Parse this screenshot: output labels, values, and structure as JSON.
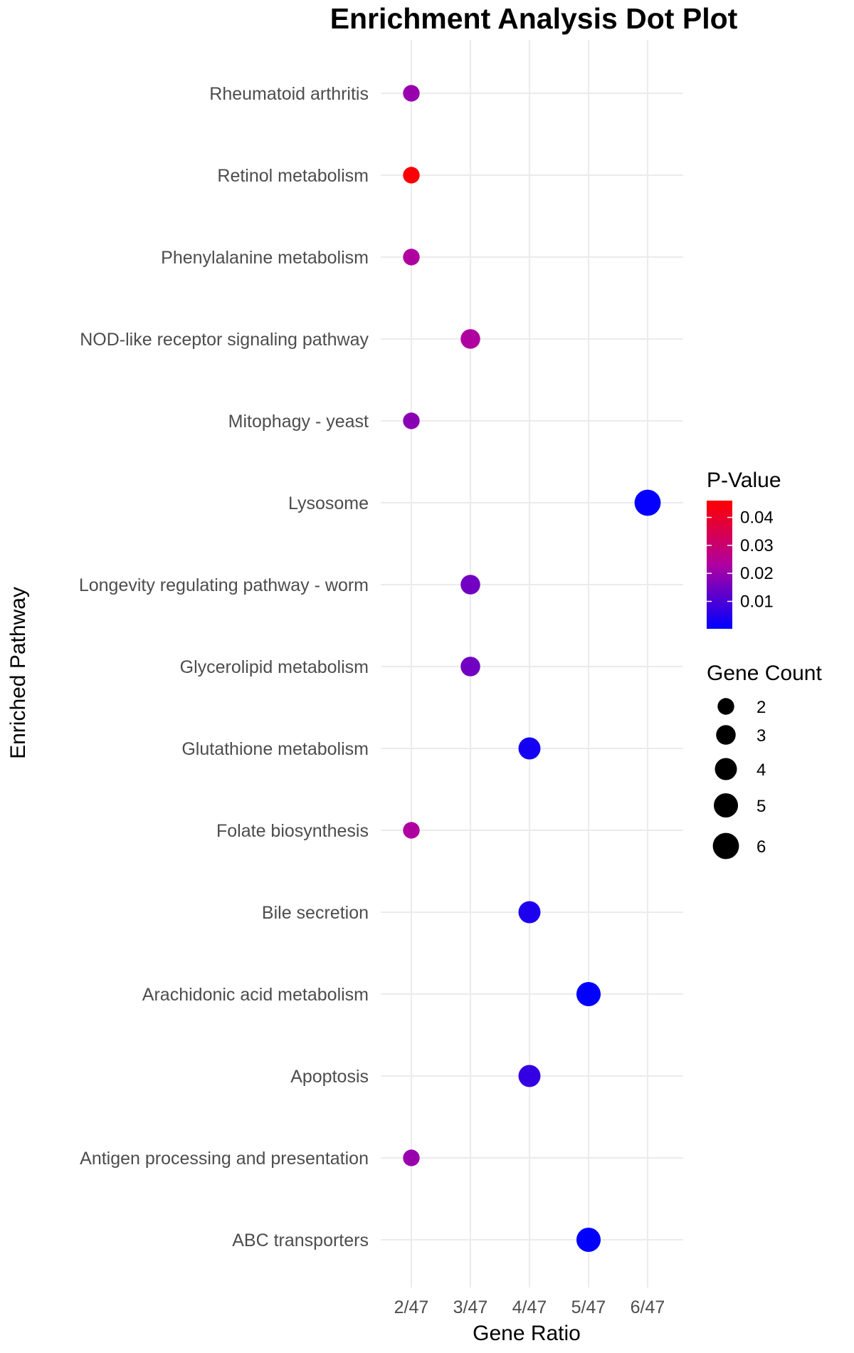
{
  "chart_data": {
    "type": "scatter",
    "title": "Enrichment Analysis Dot Plot",
    "xlabel": "Gene Ratio",
    "ylabel": "Enriched Pathway",
    "x_categories": [
      "2/47",
      "3/47",
      "4/47",
      "5/47",
      "6/47"
    ],
    "grid": true,
    "points": [
      {
        "pathway": "Rheumatoid arthritis",
        "gene_ratio": "2/47",
        "count": 2,
        "p_value": 0.02
      },
      {
        "pathway": "Retinol metabolism",
        "gene_ratio": "2/47",
        "count": 2,
        "p_value": 0.045
      },
      {
        "pathway": "Phenylalanine metabolism",
        "gene_ratio": "2/47",
        "count": 2,
        "p_value": 0.023
      },
      {
        "pathway": "NOD-like receptor signaling pathway",
        "gene_ratio": "3/47",
        "count": 3,
        "p_value": 0.023
      },
      {
        "pathway": "Mitophagy - yeast",
        "gene_ratio": "2/47",
        "count": 2,
        "p_value": 0.018
      },
      {
        "pathway": "Lysosome",
        "gene_ratio": "6/47",
        "count": 6,
        "p_value": 0.0008
      },
      {
        "pathway": "Longevity regulating pathway - worm",
        "gene_ratio": "3/47",
        "count": 3,
        "p_value": 0.015
      },
      {
        "pathway": "Glycerolipid metabolism",
        "gene_ratio": "3/47",
        "count": 3,
        "p_value": 0.015
      },
      {
        "pathway": "Glutathione metabolism",
        "gene_ratio": "4/47",
        "count": 4,
        "p_value": 0.003
      },
      {
        "pathway": "Folate biosynthesis",
        "gene_ratio": "2/47",
        "count": 2,
        "p_value": 0.023
      },
      {
        "pathway": "Bile secretion",
        "gene_ratio": "4/47",
        "count": 4,
        "p_value": 0.004
      },
      {
        "pathway": "Arachidonic acid metabolism",
        "gene_ratio": "5/47",
        "count": 5,
        "p_value": 0.0003
      },
      {
        "pathway": "Apoptosis",
        "gene_ratio": "4/47",
        "count": 4,
        "p_value": 0.007
      },
      {
        "pathway": "Antigen processing and presentation",
        "gene_ratio": "2/47",
        "count": 2,
        "p_value": 0.02
      },
      {
        "pathway": "ABC transporters",
        "gene_ratio": "5/47",
        "count": 5,
        "p_value": 0.0003
      }
    ],
    "color_legend": {
      "title": "P-Value",
      "low_color": "#0000ff",
      "high_color": "#ff0000",
      "range": [
        0.0002,
        0.046
      ],
      "ticks": [
        0.01,
        0.02,
        0.03,
        0.04
      ],
      "tick_labels": [
        "0.01",
        "0.02",
        "0.03",
        "0.04"
      ]
    },
    "size_legend": {
      "title": "Gene Count",
      "values": [
        2,
        3,
        4,
        5,
        6
      ],
      "labels": [
        "2",
        "3",
        "4",
        "5",
        "6"
      ]
    },
    "point_color_legend": "right"
  }
}
